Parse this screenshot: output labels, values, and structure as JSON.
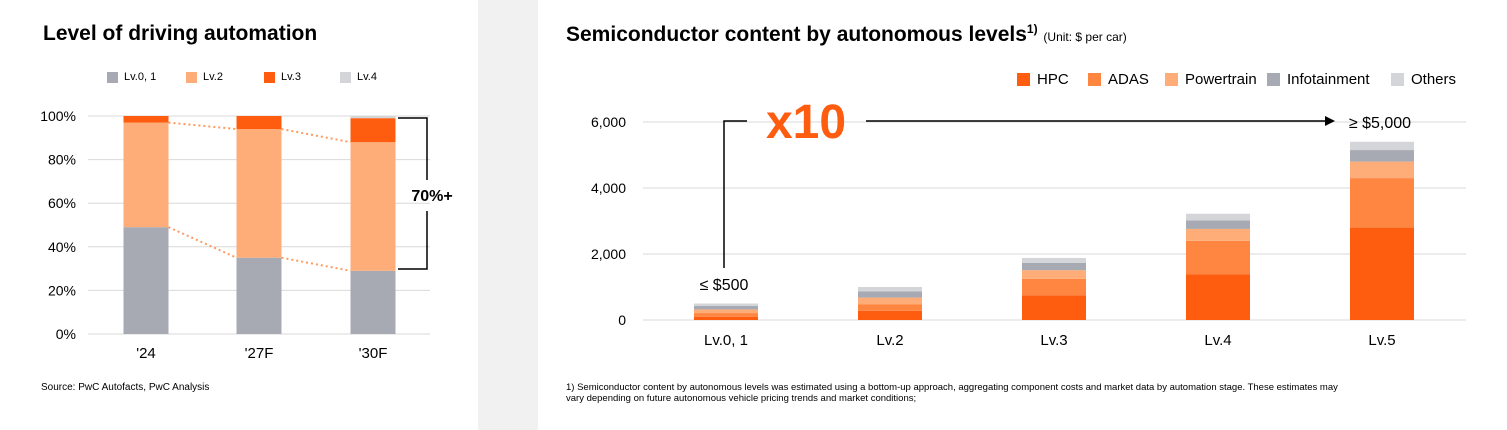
{
  "colors": {
    "lv01": "#a7aab3",
    "lv2": "#feac78",
    "lv3": "#fe5c0f",
    "lv4": "#d3d5d9",
    "hpc": "#fe5c0f",
    "adas": "#fe8640",
    "powertrain": "#feac78",
    "infotainment": "#a7aab3",
    "others": "#d3d5d9",
    "accent": "#fe5c0f",
    "grid": "#d9d9d9"
  },
  "left": {
    "title": "Level of driving automation",
    "bracket_label": "70%+",
    "source": "Source: PwC Autofacts, PwC Analysis"
  },
  "right": {
    "title": "Semiconductor content by autonomous levels",
    "title_sup": "1)",
    "unit": "(Unit: $ per car)",
    "multiplier": "x10",
    "low_label": "≤ $500",
    "high_label": "≥ $5,000",
    "footnote": "1) Semiconductor content by autonomous levels was estimated using a bottom-up approach, aggregating component costs and market data by automation stage. These estimates may vary depending on future autonomous vehicle pricing trends and market conditions;"
  },
  "chart_data": [
    {
      "type": "bar",
      "stacked": true,
      "title": "Level of driving automation",
      "categories": [
        "'24",
        "'27F",
        "'30F"
      ],
      "series": [
        {
          "name": "Lv.0, 1",
          "color": "#a7aab3",
          "values": [
            49,
            35,
            29
          ]
        },
        {
          "name": "Lv.2",
          "color": "#feac78",
          "values": [
            48,
            59,
            59
          ]
        },
        {
          "name": "Lv.3",
          "color": "#fe5c0f",
          "values": [
            3,
            6,
            11
          ]
        },
        {
          "name": "Lv.4",
          "color": "#d3d5d9",
          "values": [
            0,
            0,
            1
          ]
        }
      ],
      "ylim": [
        0,
        100
      ],
      "yticks": [
        "0%",
        "20%",
        "40%",
        "60%",
        "80%",
        "100%"
      ],
      "grid": true,
      "legend": "top",
      "annotation": "70%+"
    },
    {
      "type": "bar",
      "stacked": true,
      "title": "Semiconductor content by autonomous levels",
      "categories": [
        "Lv.0, 1",
        "Lv.2",
        "Lv.3",
        "Lv.4",
        "Lv.5"
      ],
      "series": [
        {
          "name": "HPC",
          "color": "#fe5c0f",
          "values": [
            100,
            280,
            750,
            1380,
            2800
          ]
        },
        {
          "name": "ADAS",
          "color": "#fe8640",
          "values": [
            110,
            200,
            500,
            1020,
            1500
          ]
        },
        {
          "name": "Powertrain",
          "color": "#feac78",
          "values": [
            110,
            200,
            260,
            360,
            500
          ]
        },
        {
          "name": "Infotainment",
          "color": "#a7aab3",
          "values": [
            110,
            190,
            220,
            260,
            350
          ]
        },
        {
          "name": "Others",
          "color": "#d3d5d9",
          "values": [
            70,
            130,
            150,
            200,
            250
          ]
        }
      ],
      "ylim": [
        0,
        6000
      ],
      "yticks": [
        "0",
        "2,000",
        "4,000",
        "6,000"
      ],
      "grid": true,
      "legend": "top-right",
      "annotations": [
        "x10",
        "≤ $500",
        "≥ $5,000"
      ]
    }
  ]
}
